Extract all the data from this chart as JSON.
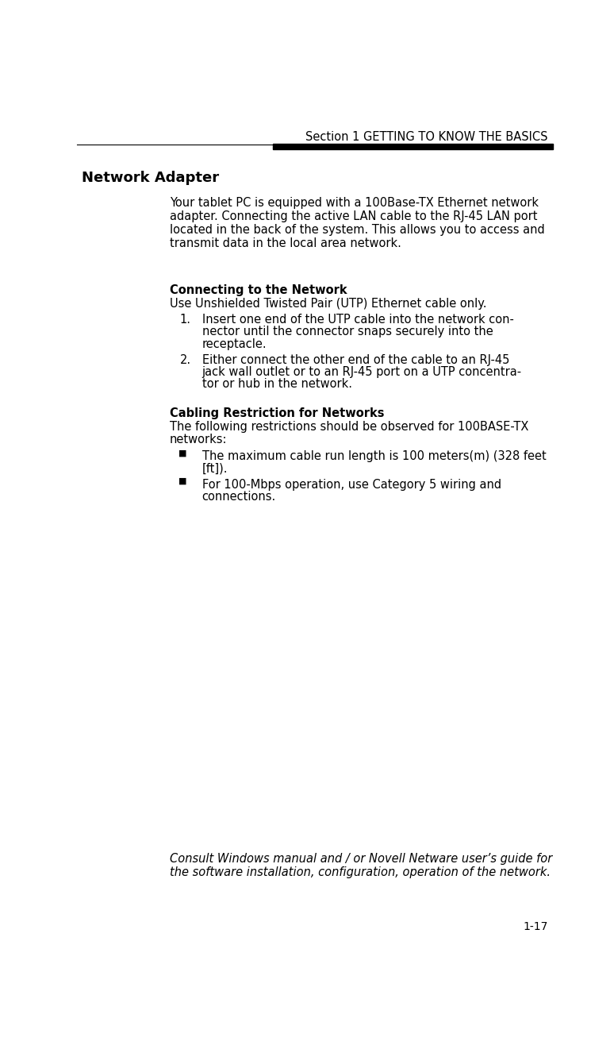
{
  "bg_color": "#ffffff",
  "header_text": "Section 1 GETTING TO KNOW THE BASICS",
  "header_font_size": 10.5,
  "header_bar_split": 0.412,
  "page_number": "1-17",
  "section_title": "Network Adapter",
  "section_title_fontsize": 13,
  "body_indent": 0.195,
  "body_fontsize": 10.5,
  "body_text_lines": [
    "Your tablet PC is equipped with a 100Base-TX Ethernet network",
    "adapter. Connecting the active LAN cable to the RJ-45 LAN port",
    "located in the back of the system. This allows you to access and",
    "transmit data in the local area network."
  ],
  "subsection1_title": "Connecting to the Network",
  "subsection1_intro": "Use Unshielded Twisted Pair (UTP) Ethernet cable only.",
  "list1_item1": [
    "Insert one end of the UTP cable into the network con-",
    "nector until the connector snaps securely into the",
    "receptacle."
  ],
  "list1_item2": [
    "Either connect the other end of the cable to an RJ-45",
    "jack wall outlet or to an RJ-45 port on a UTP concentra-",
    "tor or hub in the network."
  ],
  "subsection2_title": "Cabling Restriction for Networks",
  "subsection2_intro": [
    "The following restrictions should be observed for 100BASE-TX",
    "networks:"
  ],
  "bullet1": [
    "The maximum cable run length is 100 meters(m) (328 feet",
    "[ft])."
  ],
  "bullet2": [
    "For 100-Mbps operation, use Category 5 wiring and",
    "connections."
  ],
  "footer_line1": "Consult Windows manual and / or Novell Netware user’s guide for",
  "footer_line2": "the software installation, configuration, operation of the network.",
  "text_color": "#000000"
}
